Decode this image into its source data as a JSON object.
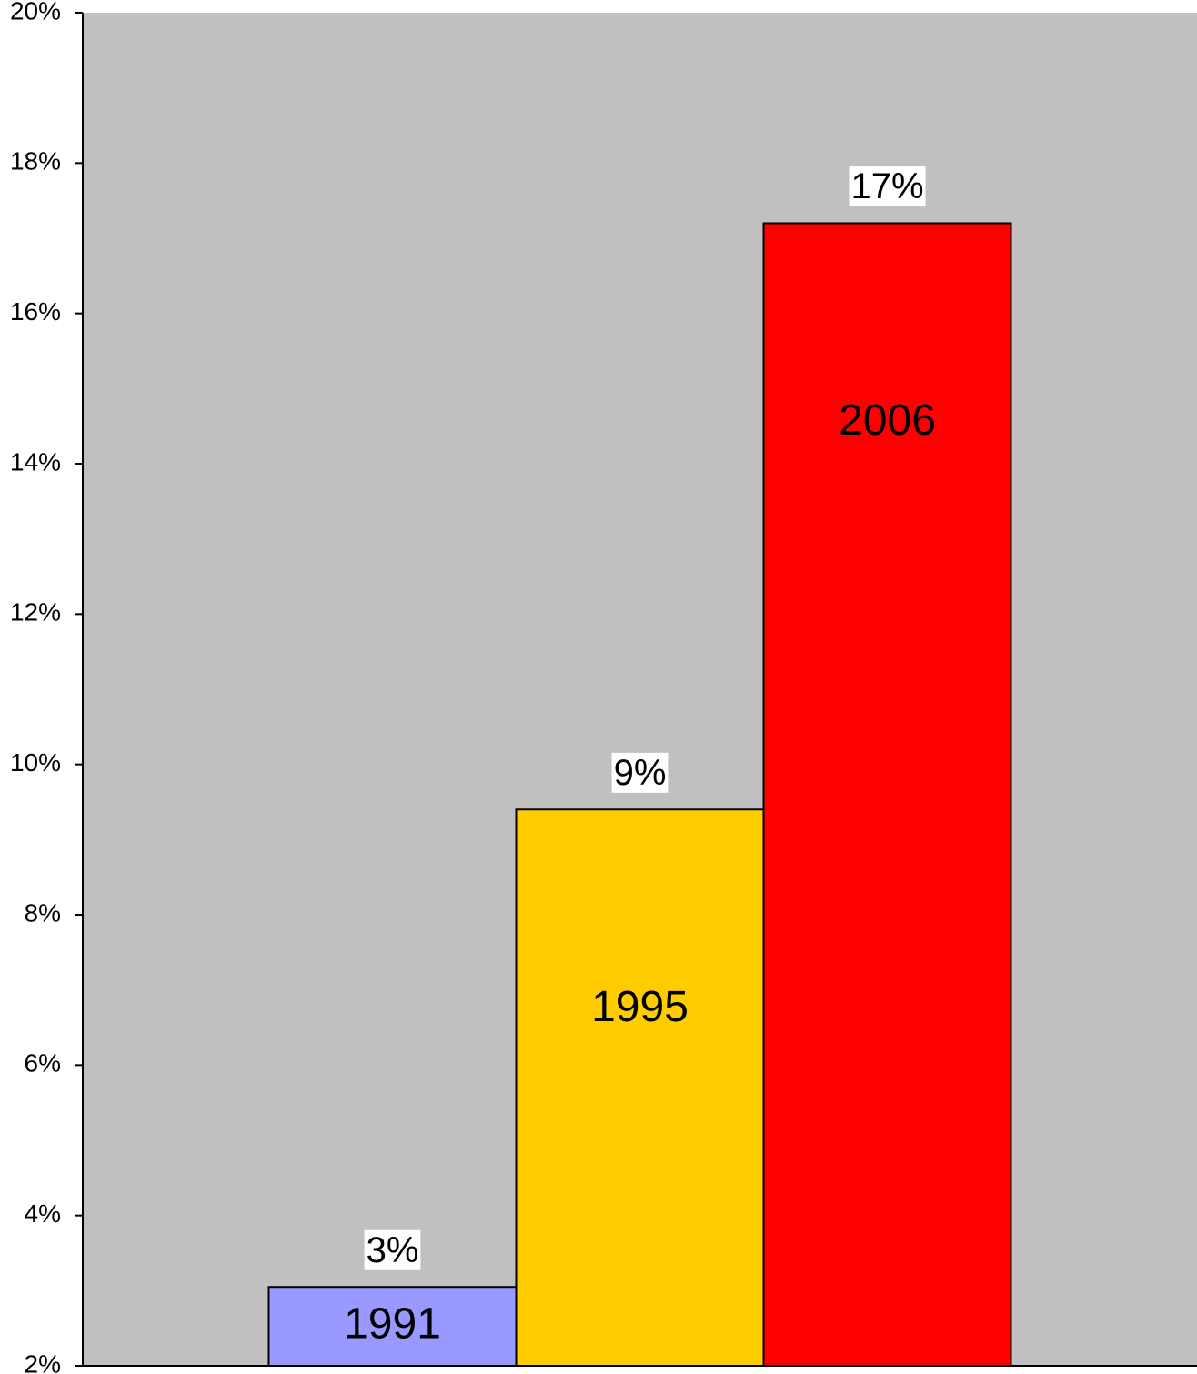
{
  "chart_data": {
    "type": "bar",
    "categories": [
      "1991",
      "1995",
      "2006"
    ],
    "values": [
      3.05,
      9.4,
      17.2
    ],
    "value_labels": [
      "3%",
      "9%",
      "17%"
    ],
    "colors": [
      "#9999ff",
      "#ffcc00",
      "#ff0000"
    ],
    "ylim": [
      2,
      20
    ],
    "yticks": [
      {
        "value": 2,
        "label": "2%"
      },
      {
        "value": 4,
        "label": "4%"
      },
      {
        "value": 6,
        "label": "6%"
      },
      {
        "value": 8,
        "label": "8%"
      },
      {
        "value": 10,
        "label": "10%"
      },
      {
        "value": 12,
        "label": "12%"
      },
      {
        "value": 14,
        "label": "14%"
      },
      {
        "value": 16,
        "label": "16%"
      },
      {
        "value": 18,
        "label": "18%"
      },
      {
        "value": 20,
        "label": "20%"
      }
    ],
    "background": "#c0c0c0"
  }
}
